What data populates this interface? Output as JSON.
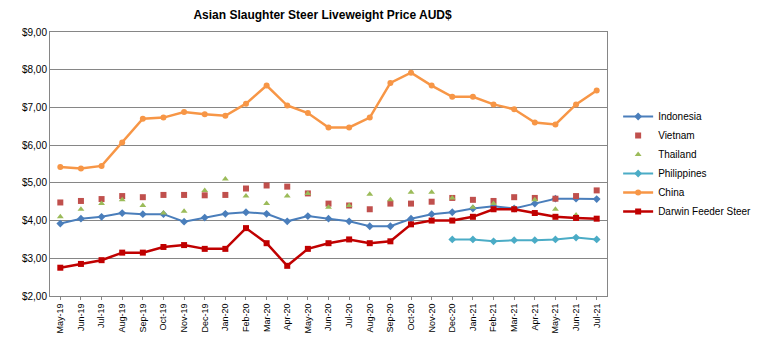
{
  "chart_data": {
    "type": "line",
    "title": "Asian Slaughter Steer Liveweight Price AUD$",
    "categories": [
      "May-19",
      "Jun-19",
      "Jul-19",
      "Aug-19",
      "Sep-19",
      "Oct-19",
      "Nov-19",
      "Dec-19",
      "Jan-20",
      "Feb-20",
      "Mar-20",
      "Apr-20",
      "May-20",
      "Jun-20",
      "Jul-20",
      "Aug-20",
      "Sep-20",
      "Oct-20",
      "Nov-20",
      "Dec-20",
      "Jan-21",
      "Feb-21",
      "Mar-21",
      "Apr-21",
      "May-21",
      "Jun-21",
      "Jul-21"
    ],
    "series": [
      {
        "name": "Indonesia",
        "color": "#4a7ebb",
        "marker": "diamond",
        "line_style": "solid",
        "values": [
          3.92,
          4.05,
          4.1,
          4.2,
          4.17,
          4.17,
          3.97,
          4.08,
          4.18,
          4.22,
          4.18,
          3.98,
          4.12,
          4.05,
          3.98,
          3.85,
          3.85,
          4.05,
          4.17,
          4.22,
          4.32,
          4.38,
          4.32,
          4.45,
          4.58,
          4.58,
          4.57
        ]
      },
      {
        "name": "Vietnam",
        "color": "#c0504d",
        "marker": "square",
        "line_style": "none",
        "values": [
          4.48,
          4.52,
          4.57,
          4.65,
          4.62,
          4.68,
          4.68,
          4.67,
          4.68,
          4.85,
          4.93,
          4.9,
          4.72,
          4.45,
          4.4,
          4.3,
          4.45,
          4.45,
          4.5,
          4.6,
          4.55,
          4.52,
          4.62,
          4.6,
          4.58,
          4.65,
          4.8
        ]
      },
      {
        "name": "Thailand",
        "color": "#9bbb59",
        "marker": "triangle",
        "line_style": "none",
        "values": [
          4.1,
          4.3,
          4.45,
          4.55,
          4.4,
          4.2,
          4.25,
          4.8,
          5.1,
          4.65,
          4.45,
          4.65,
          4.72,
          4.35,
          4.4,
          4.7,
          4.55,
          4.75,
          4.75,
          4.6,
          4.35,
          4.45,
          4.32,
          4.55,
          4.3,
          4.15,
          null
        ]
      },
      {
        "name": "Philippines",
        "color": "#4bacc6",
        "marker": "diamond",
        "line_style": "solid",
        "values": [
          null,
          null,
          null,
          null,
          null,
          null,
          null,
          null,
          null,
          null,
          null,
          null,
          null,
          null,
          null,
          null,
          null,
          null,
          null,
          3.5,
          3.5,
          3.45,
          3.48,
          3.48,
          3.5,
          3.55,
          3.5
        ]
      },
      {
        "name": "China",
        "color": "#f79646",
        "marker": "circle",
        "line_style": "solid",
        "values": [
          5.42,
          5.38,
          5.45,
          6.07,
          6.7,
          6.73,
          6.88,
          6.82,
          6.78,
          7.1,
          7.58,
          7.05,
          6.85,
          6.47,
          6.47,
          6.73,
          7.65,
          7.92,
          7.58,
          7.28,
          7.28,
          7.08,
          6.95,
          6.6,
          6.55,
          7.08,
          7.45
        ]
      },
      {
        "name": "Darwin Feeder Steer",
        "color": "#c00000",
        "marker": "square",
        "line_style": "solid",
        "values": [
          2.75,
          2.85,
          2.95,
          3.15,
          3.15,
          3.3,
          3.35,
          3.25,
          3.25,
          3.8,
          3.4,
          2.8,
          3.25,
          3.4,
          3.5,
          3.4,
          3.45,
          3.9,
          4.0,
          4.0,
          4.1,
          4.3,
          4.3,
          4.2,
          4.1,
          4.07,
          4.05
        ]
      }
    ],
    "ylim": [
      2,
      9
    ],
    "yticks": [
      {
        "value": 2,
        "label": "$2,00"
      },
      {
        "value": 3,
        "label": "$3,00"
      },
      {
        "value": 4,
        "label": "$4,00"
      },
      {
        "value": 5,
        "label": "$5,00"
      },
      {
        "value": 6,
        "label": "$6,00"
      },
      {
        "value": 7,
        "label": "$7,00"
      },
      {
        "value": 8,
        "label": "$8,00"
      },
      {
        "value": 9,
        "label": "$9,00"
      }
    ],
    "grid": true,
    "legend": "right"
  }
}
